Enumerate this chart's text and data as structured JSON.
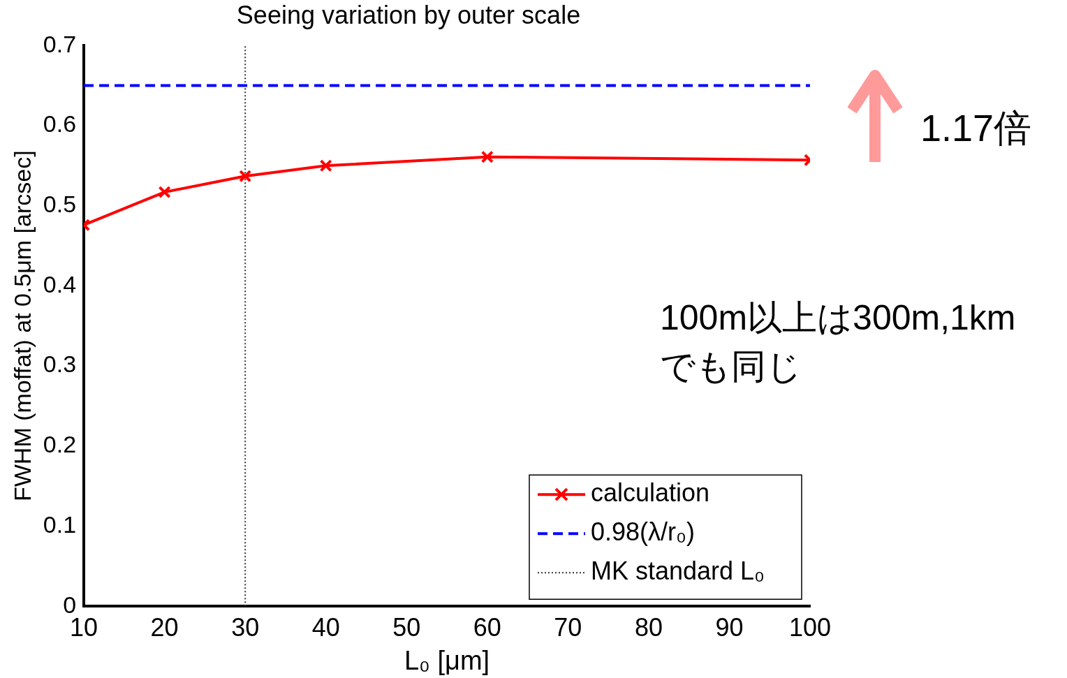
{
  "chart_data": {
    "type": "line",
    "title": "Seeing variation by outer scale",
    "xlabel": "L₀ [μm]",
    "ylabel": "FWHM (moffat) at 0.5μm [arcsec]",
    "xlim": [
      10,
      100
    ],
    "xticks": [
      10,
      20,
      30,
      40,
      50,
      60,
      70,
      80,
      90,
      100
    ],
    "ylim": [
      0,
      0.7
    ],
    "yticks": [
      0,
      0.1,
      0.2,
      0.3,
      0.4,
      0.5,
      0.6,
      0.7
    ],
    "grid": false,
    "legend": "bottom right",
    "marker": "cross",
    "line_style": "solid",
    "series": [
      {
        "name": "calculation",
        "color": "#ff0000",
        "x": [
          10,
          20,
          30,
          40,
          60,
          100
        ],
        "values": [
          0.476,
          0.517,
          0.537,
          0.55,
          0.561,
          0.557
        ]
      },
      {
        "name": "0.98(λ/r₀)",
        "color": "#0000ff",
        "x": [
          10,
          100
        ],
        "values": [
          0.65,
          0.65
        ],
        "marker": "none",
        "line_style": "dashed"
      },
      {
        "name": "MK standard L₀",
        "color": "#333333",
        "x": [
          30,
          30
        ],
        "values": [
          0,
          0.7
        ],
        "marker": "none",
        "line_style": "dotted"
      }
    ],
    "annotations": [
      "1.17倍",
      "100m以上は300m,1kmでも同じ"
    ]
  }
}
